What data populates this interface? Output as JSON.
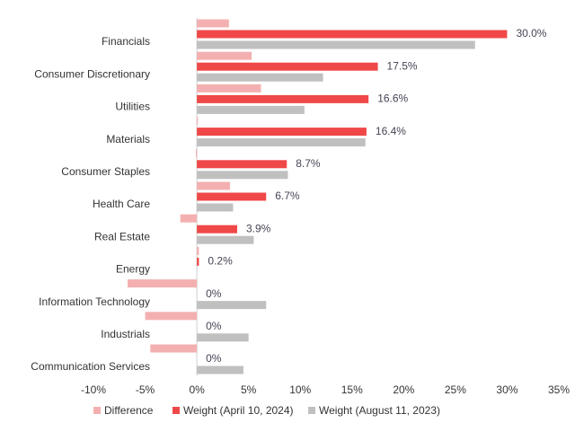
{
  "chart_data": {
    "type": "hbar",
    "categories": [
      "Financials",
      "Consumer Discretionary",
      "Utilities",
      "Materials",
      "Consumer Staples",
      "Health Care",
      "Real Estate",
      "Energy",
      "Information Technology",
      "Industrials",
      "Communication Services"
    ],
    "series": [
      {
        "name": "Difference",
        "color": "#f4b0b0",
        "values": [
          3.1,
          5.3,
          6.2,
          0.1,
          -0.1,
          3.2,
          -1.6,
          0.2,
          -6.7,
          -5.0,
          -4.5
        ]
      },
      {
        "name": "Weight (April 10, 2024)",
        "color": "#f04848",
        "values": [
          30.0,
          17.5,
          16.6,
          16.4,
          8.7,
          6.7,
          3.9,
          0.2,
          0,
          0,
          0
        ],
        "value_labels": [
          "30.0%",
          "17.5%",
          "16.6%",
          "16.4%",
          "8.7%",
          "6.7%",
          "3.9%",
          "0.2%",
          "0%",
          "0%",
          "0%"
        ]
      },
      {
        "name": "Weight (August 11, 2023)",
        "color": "#c0c0c0",
        "values": [
          26.9,
          12.2,
          10.4,
          16.3,
          8.8,
          3.5,
          5.5,
          0,
          6.7,
          5.0,
          4.5
        ]
      }
    ],
    "xlim": [
      -10,
      35
    ],
    "xticks": [
      {
        "value": -10,
        "label": "-10%"
      },
      {
        "value": -5,
        "label": "-5%"
      },
      {
        "value": 0,
        "label": "0%"
      },
      {
        "value": 5,
        "label": "5%"
      },
      {
        "value": 10,
        "label": "10%"
      },
      {
        "value": 15,
        "label": "15%"
      },
      {
        "value": 20,
        "label": "20%"
      },
      {
        "value": 25,
        "label": "25%"
      },
      {
        "value": 30,
        "label": "30%"
      },
      {
        "value": 35,
        "label": "35%"
      }
    ],
    "legend": "bottom"
  }
}
